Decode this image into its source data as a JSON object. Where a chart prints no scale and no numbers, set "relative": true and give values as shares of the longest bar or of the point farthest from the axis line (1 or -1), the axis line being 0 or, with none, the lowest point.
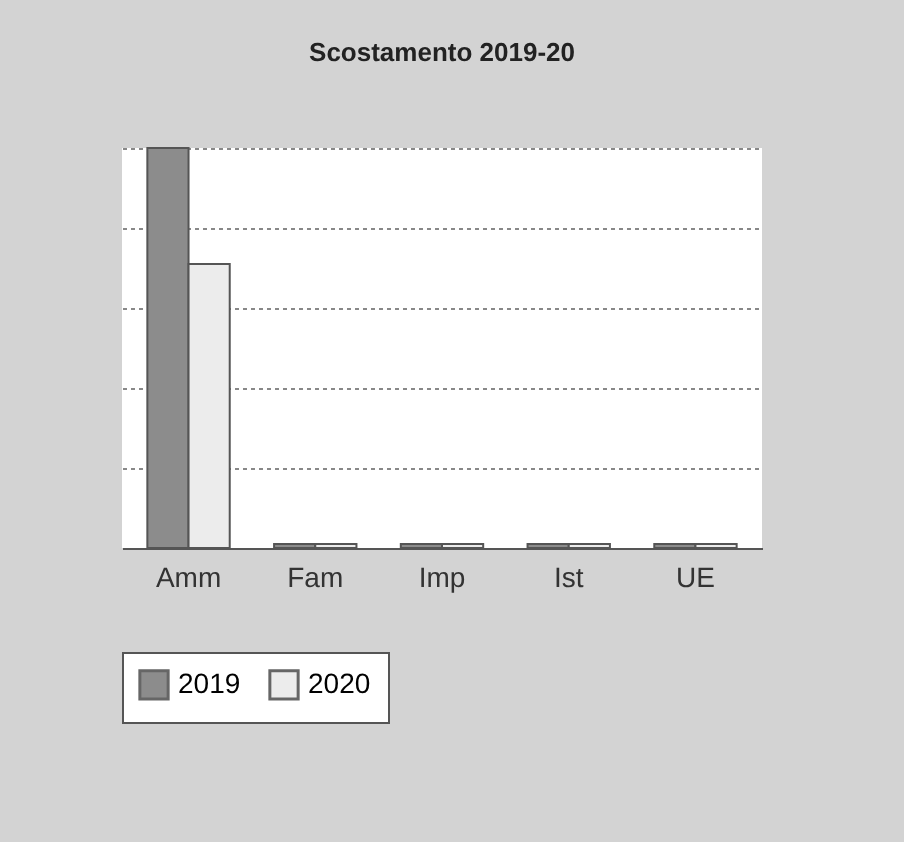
{
  "chart_data": {
    "type": "bar",
    "title": "Scostamento 2019-20",
    "relative": true,
    "grid": true,
    "legend": "bottom",
    "categories": [
      "Amm",
      "Fam",
      "Imp",
      "Ist",
      "UE"
    ],
    "series": [
      {
        "name": "2019",
        "color": "#8c8c8c",
        "values": [
          1,
          0.01,
          0.01,
          0.01,
          0.01
        ]
      },
      {
        "name": "2020",
        "color": "#ececec",
        "values": [
          0.71,
          0.01,
          0.01,
          0.01,
          0.01
        ]
      }
    ]
  }
}
